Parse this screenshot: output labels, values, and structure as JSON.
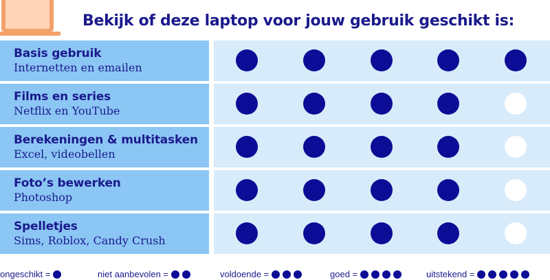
{
  "header": {
    "title": "Bekijk of deze laptop voor jouw gebruik geschikt is:",
    "icon": "laptop-icon"
  },
  "colors": {
    "accent": "#1a1a8c",
    "dot_filled": "#0c0c96",
    "label_bg": "#8cc6f5",
    "row_bg": "#d8ebfb"
  },
  "rows": [
    {
      "title": "Basis gebruik",
      "subtitle": "Internetten en emailen",
      "rating": 5
    },
    {
      "title": "Films en series",
      "subtitle": "Netflix en YouTube",
      "rating": 4
    },
    {
      "title": "Berekeningen & multitasken",
      "subtitle": "Excel, videobellen",
      "rating": 4
    },
    {
      "title": "Foto’s bewerken",
      "subtitle": "Photoshop",
      "rating": 4
    },
    {
      "title": "Spelletjes",
      "subtitle": "Sims, Roblox, Candy Crush",
      "rating": 4
    }
  ],
  "max_rating": 5,
  "legend": [
    {
      "label": "ongeschikt =",
      "dots": 1
    },
    {
      "label": "niet aanbevolen =",
      "dots": 2
    },
    {
      "label": "voldoende =",
      "dots": 3
    },
    {
      "label": "goed =",
      "dots": 4
    },
    {
      "label": "uitstekend =",
      "dots": 5
    }
  ]
}
